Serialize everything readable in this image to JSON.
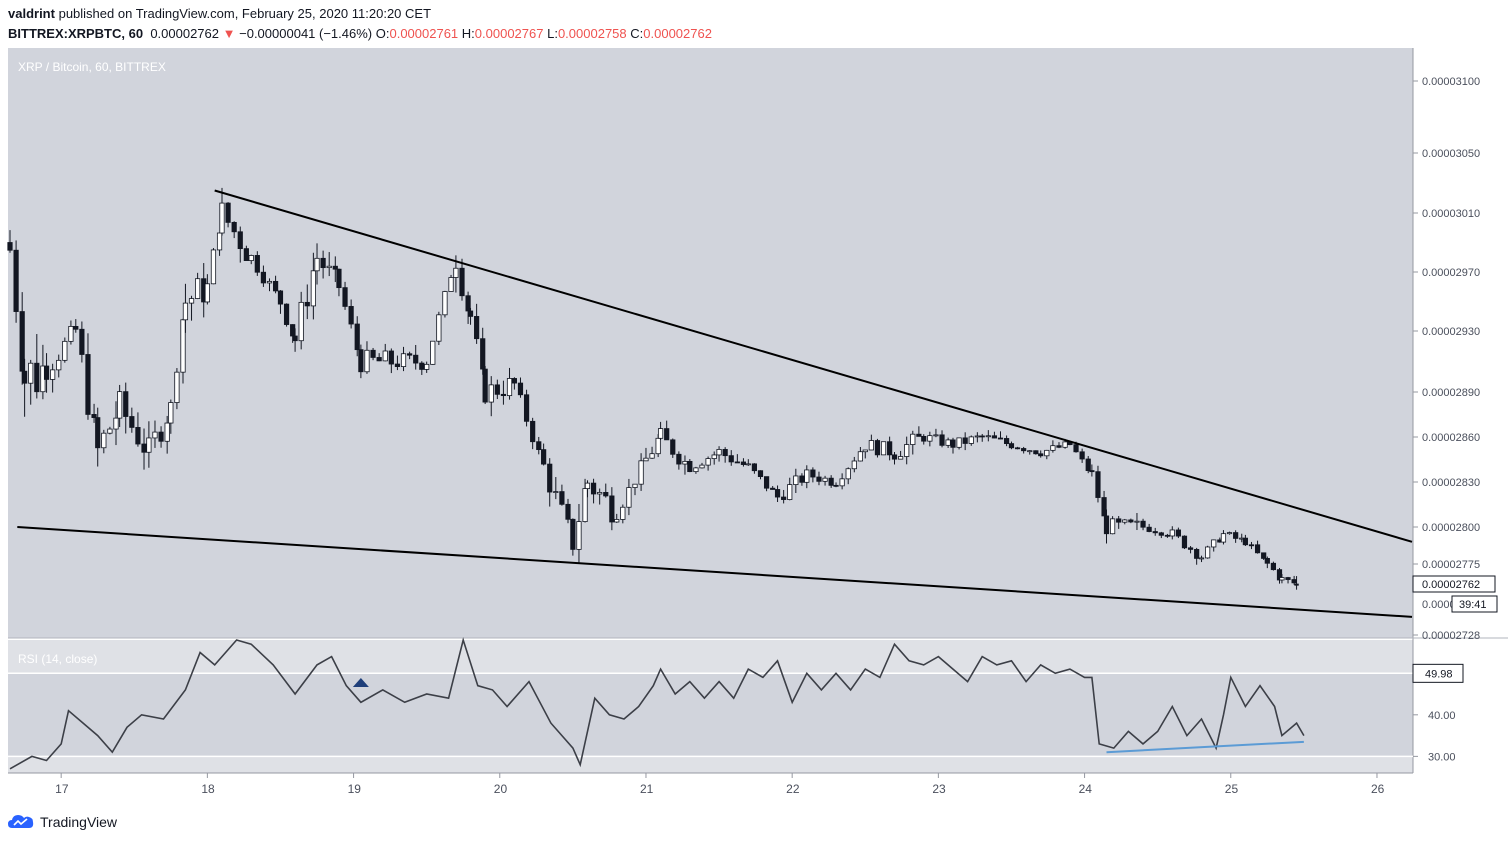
{
  "header": {
    "author": "valdrint",
    "published_text": "published on TradingView.com, February 25, 2020 11:20:20 CET",
    "symbol": "BITTREX:XRPBTC, 60",
    "last": "0.00002762",
    "change": "−0.00000041 (−1.46%)",
    "o_label": "O:",
    "o_value": "0.00002761",
    "h_label": "H:",
    "h_value": "0.00002767",
    "l_label": "L:",
    "l_value": "0.00002758",
    "c_label": "C:",
    "c_value": "0.00002762"
  },
  "footer": {
    "brand": "TradingView"
  },
  "colors": {
    "background": "#d1d4dc",
    "rsi_background": "#dfe1e6",
    "rsi_band": "#d1d4dc",
    "candle": "#131722",
    "rsi_line": "#3c3f47",
    "divergence_line": "#5b9bd5",
    "arrow": "#1f3f7a",
    "change_red": "#ef5350"
  },
  "chart_data": [
    {
      "type": "candlestick",
      "title": "XRP / Bitcoin, 60, BITTREX",
      "y_ticks": [
        "0.00003100",
        "0.00003050",
        "0.00003010",
        "0.00002970",
        "0.00002930",
        "0.00002890",
        "0.00002860",
        "0.00002830",
        "0.00002800",
        "0.00002775",
        "0.00002728"
      ],
      "y_tick_values": [
        3.1e-05,
        3.05e-05,
        3.01e-05,
        2.97e-05,
        2.93e-05,
        2.89e-05,
        2.86e-05,
        2.83e-05,
        2.8e-05,
        2.775e-05,
        2.728e-05
      ],
      "x_ticks": [
        "17",
        "18",
        "19",
        "20",
        "21",
        "22",
        "23",
        "24",
        "25",
        "26"
      ],
      "x_tick_days": [
        17,
        18,
        19,
        20,
        21,
        22,
        23,
        24,
        25,
        26
      ],
      "last_price_label": "0.00002762",
      "countdown_label": "39:41",
      "countdown_partial_label": "0.0000",
      "day_range": [
        16.65,
        26.25
      ],
      "ylim": [
        2.728e-05,
        3.1e-05
      ],
      "ohlc_anchors": [
        [
          16.65,
          2.99e-05,
          3.01e-05,
          2.91e-05,
          2.985e-05
        ],
        [
          16.75,
          2.86e-05,
          2.99e-05,
          2.8e-05,
          2.9e-05
        ],
        [
          16.9,
          2.91e-05,
          2.93e-05,
          2.87e-05,
          2.905e-05
        ],
        [
          17.1,
          2.89e-05,
          2.96e-05,
          2.86e-05,
          2.93e-05
        ],
        [
          17.25,
          2.9e-05,
          2.94e-05,
          2.83e-05,
          2.85e-05
        ],
        [
          17.4,
          2.86e-05,
          2.89e-05,
          2.8e-05,
          2.88e-05
        ],
        [
          17.6,
          2.88e-05,
          2.9e-05,
          2.82e-05,
          2.85e-05
        ],
        [
          17.75,
          2.85e-05,
          2.89e-05,
          2.84e-05,
          2.88e-05
        ],
        [
          17.85,
          2.88e-05,
          2.96e-05,
          2.86e-05,
          2.95e-05
        ],
        [
          18.0,
          2.94e-05,
          2.97e-05,
          2.92e-05,
          2.96e-05
        ],
        [
          18.1,
          2.96e-05,
          3.02e-05,
          2.94e-05,
          3.01e-05
        ],
        [
          18.3,
          3e-05,
          3.01e-05,
          2.97e-05,
          2.98e-05
        ],
        [
          18.5,
          2.97e-05,
          2.99e-05,
          2.94e-05,
          2.95e-05
        ],
        [
          18.6,
          2.94e-05,
          2.96e-05,
          2.87e-05,
          2.925e-05
        ],
        [
          18.75,
          2.93e-05,
          2.99e-05,
          2.92e-05,
          2.98e-05
        ],
        [
          18.9,
          2.98e-05,
          2.99e-05,
          2.95e-05,
          2.96e-05
        ],
        [
          19.05,
          2.95e-05,
          2.96e-05,
          2.9e-05,
          2.91e-05
        ],
        [
          19.3,
          2.92e-05,
          2.95e-05,
          2.9e-05,
          2.91e-05
        ],
        [
          19.5,
          2.91e-05,
          2.93e-05,
          2.9e-05,
          2.91e-05
        ],
        [
          19.7,
          2.92e-05,
          2.99e-05,
          2.91e-05,
          2.98e-05
        ],
        [
          19.8,
          2.98e-05,
          2.99e-05,
          2.93e-05,
          2.94e-05
        ],
        [
          19.9,
          2.93e-05,
          2.935e-05,
          2.87e-05,
          2.89e-05
        ],
        [
          20.1,
          2.9e-05,
          2.92e-05,
          2.88e-05,
          2.895e-05
        ],
        [
          20.3,
          2.88e-05,
          2.89e-05,
          2.82e-05,
          2.84e-05
        ],
        [
          20.5,
          2.82e-05,
          2.85e-05,
          2.77e-05,
          2.79e-05
        ],
        [
          20.6,
          2.8e-05,
          2.85e-05,
          2.77e-05,
          2.83e-05
        ],
        [
          20.8,
          2.83e-05,
          2.84e-05,
          2.8e-05,
          2.81e-05
        ],
        [
          21.0,
          2.82e-05,
          2.85e-05,
          2.8e-05,
          2.845e-05
        ],
        [
          21.1,
          2.845e-05,
          2.87e-05,
          2.82e-05,
          2.86e-05
        ],
        [
          21.3,
          2.85e-05,
          2.86e-05,
          2.83e-05,
          2.84e-05
        ],
        [
          21.5,
          2.84e-05,
          2.86e-05,
          2.82e-05,
          2.85e-05
        ],
        [
          21.7,
          2.85e-05,
          2.86e-05,
          2.83e-05,
          2.84e-05
        ],
        [
          21.9,
          2.83e-05,
          2.85e-05,
          2.81e-05,
          2.82e-05
        ],
        [
          22.1,
          2.82e-05,
          2.84e-05,
          2.81e-05,
          2.835e-05
        ],
        [
          22.3,
          2.835e-05,
          2.845e-05,
          2.82e-05,
          2.83e-05
        ],
        [
          22.5,
          2.83e-05,
          2.86e-05,
          2.82e-05,
          2.855e-05
        ],
        [
          22.7,
          2.855e-05,
          2.88e-05,
          2.83e-05,
          2.85e-05
        ],
        [
          22.9,
          2.85e-05,
          2.87e-05,
          2.84e-05,
          2.86e-05
        ],
        [
          23.1,
          2.86e-05,
          2.87e-05,
          2.84e-05,
          2.855e-05
        ],
        [
          23.3,
          2.855e-05,
          2.87e-05,
          2.84e-05,
          2.86e-05
        ],
        [
          23.5,
          2.86e-05,
          2.87e-05,
          2.845e-05,
          2.855e-05
        ],
        [
          23.7,
          2.855e-05,
          2.865e-05,
          2.84e-05,
          2.85e-05
        ],
        [
          23.9,
          2.85e-05,
          2.86e-05,
          2.84e-05,
          2.855e-05
        ],
        [
          24.05,
          2.855e-05,
          2.86e-05,
          2.83e-05,
          2.835e-05
        ],
        [
          24.15,
          2.83e-05,
          2.835e-05,
          2.79e-05,
          2.8e-05
        ],
        [
          24.4,
          2.8e-05,
          2.81e-05,
          2.79e-05,
          2.8e-05
        ],
        [
          24.6,
          2.8e-05,
          2.81e-05,
          2.78e-05,
          2.795e-05
        ],
        [
          24.8,
          2.79e-05,
          2.8e-05,
          2.775e-05,
          2.78e-05
        ],
        [
          24.95,
          2.78e-05,
          2.8e-05,
          2.775e-05,
          2.795e-05
        ],
        [
          25.1,
          2.795e-05,
          2.8e-05,
          2.78e-05,
          2.79e-05
        ],
        [
          25.25,
          2.79e-05,
          2.795e-05,
          2.77e-05,
          2.775e-05
        ],
        [
          25.35,
          2.775e-05,
          2.78e-05,
          2.76e-05,
          2.765e-05
        ],
        [
          25.45,
          2.761e-05,
          2.767e-05,
          2.758e-05,
          2.762e-05
        ]
      ],
      "trendlines": [
        {
          "name": "upper-descending-resistance",
          "points": [
            [
              18.05,
              3.025e-05
            ],
            [
              26.25,
              2.79e-05
            ]
          ]
        },
        {
          "name": "lower-support",
          "points": [
            [
              16.7,
              2.8e-05
            ],
            [
              26.25,
              2.74e-05
            ]
          ]
        }
      ]
    },
    {
      "type": "line",
      "title": "RSI (14, close)",
      "y_ticks": [
        "49.98",
        "40.00",
        "30.00"
      ],
      "y_tick_values": [
        49.98,
        40.0,
        30.0
      ],
      "ylim": [
        26,
        58
      ],
      "band": [
        30,
        50
      ],
      "values_by_day": [
        [
          16.65,
          27
        ],
        [
          16.8,
          30
        ],
        [
          16.9,
          29
        ],
        [
          17.0,
          33
        ],
        [
          17.05,
          41
        ],
        [
          17.15,
          38
        ],
        [
          17.25,
          35
        ],
        [
          17.35,
          31
        ],
        [
          17.45,
          37
        ],
        [
          17.55,
          40
        ],
        [
          17.7,
          39
        ],
        [
          17.85,
          46
        ],
        [
          17.95,
          55
        ],
        [
          18.05,
          52
        ],
        [
          18.2,
          58
        ],
        [
          18.3,
          57
        ],
        [
          18.45,
          52
        ],
        [
          18.6,
          45
        ],
        [
          18.75,
          52
        ],
        [
          18.85,
          54
        ],
        [
          18.95,
          47
        ],
        [
          19.05,
          43
        ],
        [
          19.2,
          46
        ],
        [
          19.35,
          43
        ],
        [
          19.5,
          45
        ],
        [
          19.65,
          44
        ],
        [
          19.75,
          58
        ],
        [
          19.85,
          47
        ],
        [
          19.95,
          46
        ],
        [
          20.05,
          42
        ],
        [
          20.2,
          48
        ],
        [
          20.35,
          38
        ],
        [
          20.5,
          32
        ],
        [
          20.55,
          28
        ],
        [
          20.65,
          44
        ],
        [
          20.75,
          40
        ],
        [
          20.85,
          39
        ],
        [
          20.95,
          42
        ],
        [
          21.05,
          47
        ],
        [
          21.1,
          51
        ],
        [
          21.2,
          45
        ],
        [
          21.3,
          48
        ],
        [
          21.4,
          44
        ],
        [
          21.5,
          48
        ],
        [
          21.6,
          44
        ],
        [
          21.7,
          51
        ],
        [
          21.8,
          49
        ],
        [
          21.9,
          53
        ],
        [
          22.0,
          43
        ],
        [
          22.1,
          50
        ],
        [
          22.2,
          46
        ],
        [
          22.3,
          50
        ],
        [
          22.4,
          46
        ],
        [
          22.5,
          51
        ],
        [
          22.6,
          49
        ],
        [
          22.7,
          57
        ],
        [
          22.8,
          53
        ],
        [
          22.9,
          52
        ],
        [
          23.0,
          54
        ],
        [
          23.1,
          51
        ],
        [
          23.2,
          48
        ],
        [
          23.3,
          54
        ],
        [
          23.4,
          52
        ],
        [
          23.5,
          53
        ],
        [
          23.6,
          48
        ],
        [
          23.7,
          52
        ],
        [
          23.8,
          50
        ],
        [
          23.9,
          51
        ],
        [
          24.0,
          49
        ],
        [
          24.05,
          49
        ],
        [
          24.1,
          33
        ],
        [
          24.2,
          32
        ],
        [
          24.3,
          36
        ],
        [
          24.4,
          33
        ],
        [
          24.5,
          36
        ],
        [
          24.6,
          42
        ],
        [
          24.7,
          35
        ],
        [
          24.8,
          39
        ],
        [
          24.9,
          32
        ],
        [
          24.95,
          40
        ],
        [
          25.0,
          49
        ],
        [
          25.1,
          42
        ],
        [
          25.2,
          47
        ],
        [
          25.3,
          42
        ],
        [
          25.35,
          35
        ],
        [
          25.45,
          38
        ],
        [
          25.5,
          35
        ]
      ],
      "divergence_line": [
        [
          24.15,
          31
        ],
        [
          25.5,
          33.5
        ]
      ],
      "arrow_day": 19.05
    }
  ]
}
